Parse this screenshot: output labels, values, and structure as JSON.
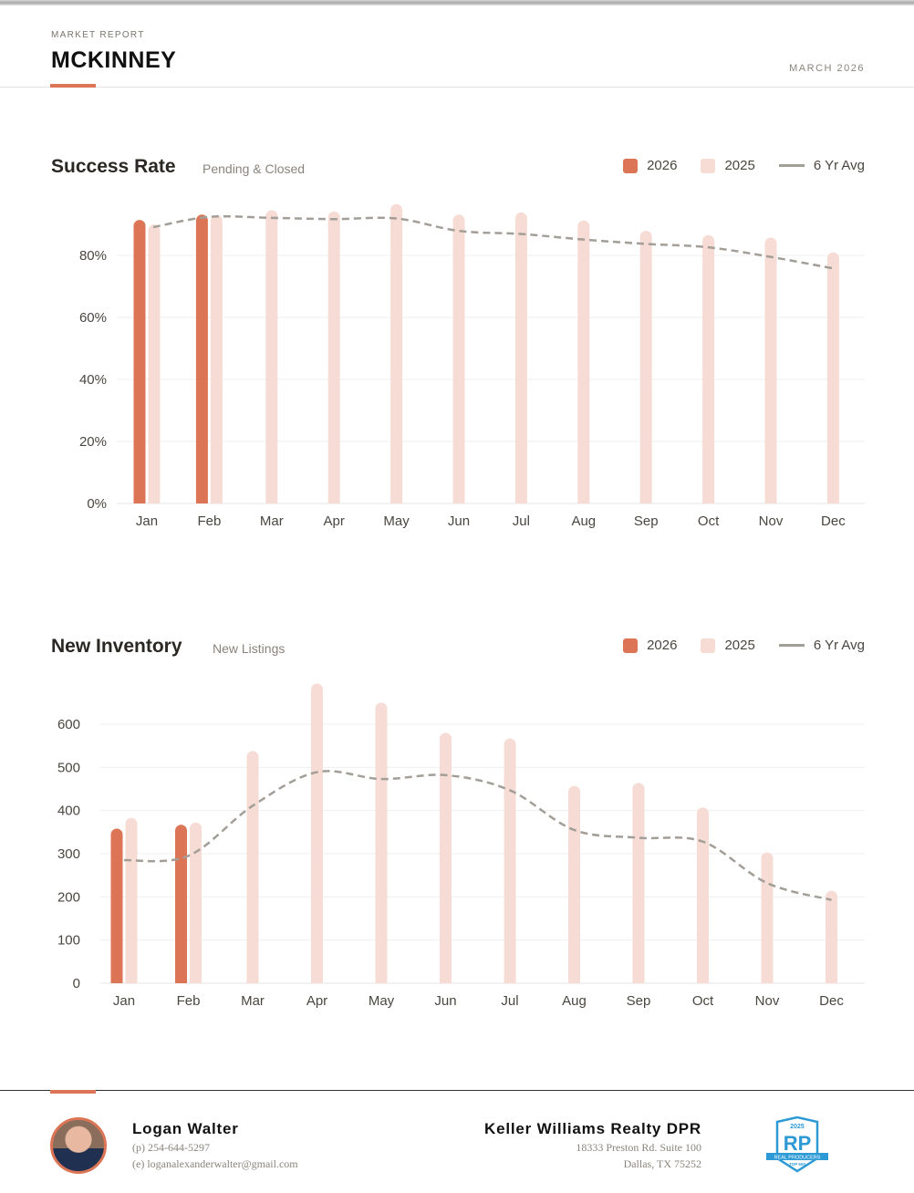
{
  "header": {
    "kicker": "MARKET REPORT",
    "title": "MCKINNEY",
    "date": "MARCH 2026"
  },
  "colors": {
    "accent": "#db7556",
    "y2025": "#f6dcd4",
    "avg": "#a39e97"
  },
  "legend": {
    "a": "2026",
    "b": "2025",
    "avg": "6 Yr Avg"
  },
  "chart_data": [
    {
      "type": "bar",
      "title": "Success Rate",
      "subtitle": "Pending & Closed",
      "categories": [
        "Jan",
        "Feb",
        "Mar",
        "Apr",
        "May",
        "Jun",
        "Jul",
        "Aug",
        "Sep",
        "Oct",
        "Nov",
        "Dec"
      ],
      "yticks": [
        "0%",
        "20%",
        "40%",
        "60%",
        "80%"
      ],
      "ylim": [
        0,
        100
      ],
      "ystep": 20,
      "series": [
        {
          "name": "2026",
          "values": [
            91.3,
            93.0,
            null,
            null,
            null,
            null,
            null,
            null,
            null,
            null,
            null,
            null
          ]
        },
        {
          "name": "2025",
          "values": [
            89.8,
            92.8,
            94.4,
            94.0,
            96.4,
            93.0,
            93.7,
            91.1,
            87.8,
            86.4,
            85.6,
            80.8
          ]
        },
        {
          "name": "6 Yr Avg",
          "type": "line",
          "values": [
            89.1,
            92.4,
            92.1,
            91.7,
            91.9,
            87.9,
            86.9,
            85.1,
            83.7,
            82.6,
            79.5,
            75.8
          ]
        }
      ]
    },
    {
      "type": "bar",
      "title": "New Inventory",
      "subtitle": "New Listings",
      "categories": [
        "Jan",
        "Feb",
        "Mar",
        "Apr",
        "May",
        "Jun",
        "Jul",
        "Aug",
        "Sep",
        "Oct",
        "Nov",
        "Dec"
      ],
      "yticks": [
        "0",
        "100",
        "200",
        "300",
        "400",
        "500",
        "600"
      ],
      "ylim": [
        0,
        700
      ],
      "ystep": 100,
      "series": [
        {
          "name": "2026",
          "values": [
            357,
            366,
            null,
            null,
            null,
            null,
            null,
            null,
            null,
            null,
            null,
            null
          ]
        },
        {
          "name": "2025",
          "values": [
            382,
            371,
            537,
            693,
            649,
            579,
            566,
            456,
            463,
            406,
            302,
            213
          ]
        },
        {
          "name": "6 Yr Avg",
          "type": "line",
          "values": [
            285,
            295,
            411,
            489,
            473,
            482,
            447,
            355,
            337,
            328,
            232,
            193
          ]
        }
      ]
    }
  ],
  "footer": {
    "agent": "Logan Walter",
    "phone": "(p) 254-644-5297",
    "email": "(e) loganalexanderwalter@gmail.com",
    "company": "Keller Williams Realty DPR",
    "addr1": "18333 Preston Rd. Suite 100",
    "addr2": "Dallas, TX 75252",
    "badge": {
      "year": "2025",
      "mark": "RP",
      "line1": "REAL PRODUCERS",
      "line2": "TOP 500"
    }
  }
}
